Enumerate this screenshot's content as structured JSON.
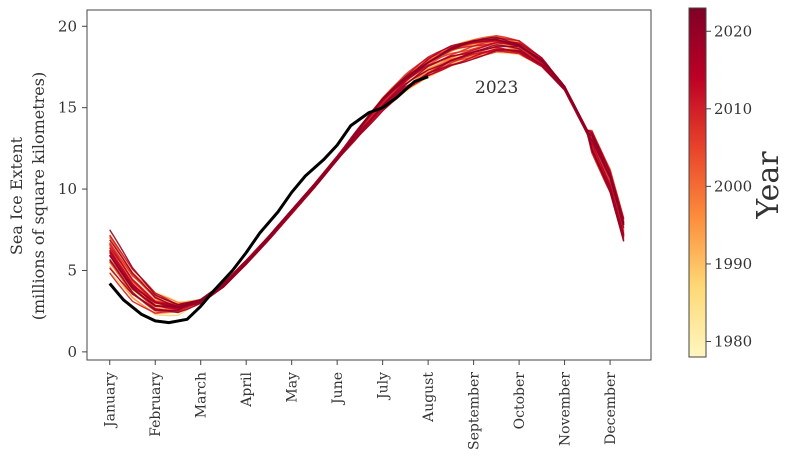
{
  "chart_data": {
    "type": "line",
    "ylabel_line1": "Sea Ice Extent",
    "ylabel_line2": "(millions of square kilometres)",
    "xlabel": "",
    "ylim": [
      -0.5,
      21
    ],
    "yticks": [
      0,
      5,
      10,
      15,
      20
    ],
    "months": [
      "January",
      "February",
      "March",
      "April",
      "May",
      "June",
      "July",
      "August",
      "September",
      "October",
      "November",
      "December"
    ],
    "highlight": {
      "name": "2023",
      "label": "2023",
      "color": "#000000",
      "x": [
        1,
        1.3,
        1.7,
        2.0,
        2.3,
        2.7,
        3.0,
        3.3,
        3.7,
        4.0,
        4.3,
        4.7,
        5.0,
        5.3,
        5.7,
        6.0,
        6.3,
        6.7,
        7.0,
        7.3,
        7.7,
        8.0,
        8.3,
        8.7
      ],
      "values": [
        4.2,
        3.2,
        2.3,
        1.9,
        1.8,
        2.0,
        2.8,
        3.8,
        5.0,
        6.1,
        7.3,
        8.6,
        9.8,
        10.8,
        11.8,
        12.7,
        13.9,
        14.7,
        15.0,
        15.6,
        16.6,
        16.9,
        null,
        null
      ]
    },
    "band": {
      "x": [
        1,
        1.5,
        2.0,
        2.5,
        3.0,
        3.5,
        4.0,
        4.5,
        5.0,
        5.5,
        6.0,
        6.5,
        7.0,
        7.5,
        8.0,
        8.5,
        9.0,
        9.5,
        10.0,
        10.5,
        11.0,
        11.5,
        12.0,
        12.3
      ],
      "median": [
        6.2,
        4.2,
        3.0,
        2.7,
        3.1,
        4.1,
        5.5,
        7.0,
        8.6,
        10.2,
        11.9,
        13.6,
        15.2,
        16.5,
        17.5,
        18.2,
        18.6,
        18.9,
        18.7,
        17.8,
        16.2,
        13.5,
        10.5,
        7.5
      ]
    },
    "colorbar": {
      "label": "Year",
      "min": 1978,
      "max": 2023,
      "ticks": [
        1980,
        1990,
        2000,
        2010,
        2020
      ],
      "colors": [
        "#fff6c0",
        "#fed976",
        "#fd8d3c",
        "#e8432a",
        "#bd0026",
        "#800026"
      ]
    }
  }
}
